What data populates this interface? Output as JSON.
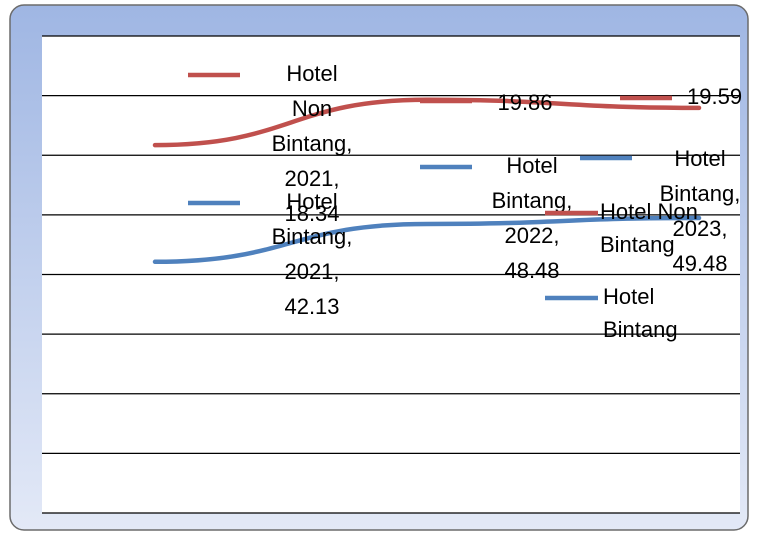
{
  "chart_data": {
    "type": "line",
    "categories": [
      "2021",
      "2022",
      "2023"
    ],
    "series": [
      {
        "name": "Hotel Non Bintang",
        "color": "#c0504d",
        "axis": "y2",
        "values": [
          18.34,
          19.86,
          19.59
        ],
        "value_labels": [
          "Hotel Non Bintang, 2021, 18.34",
          "19.86",
          "19.59"
        ]
      },
      {
        "name": "Hotel Bintang",
        "color": "#4f81bd",
        "values": [
          42.13,
          48.48,
          49.48
        ],
        "value_labels": [
          "Hotel Bintang, 2021, 42.13",
          "Hotel Bintang, 2022, 48.48",
          "Hotel Bintang, 2023, 49.48"
        ]
      }
    ],
    "ylim": [
      0,
      80
    ],
    "yticks": [
      0,
      10,
      20,
      30,
      40,
      50,
      60,
      70,
      80
    ],
    "y2lim": [
      6,
      22
    ],
    "y2ticks": [
      6,
      8,
      10,
      12,
      14,
      16,
      18,
      20,
      22
    ],
    "grid": true
  }
}
